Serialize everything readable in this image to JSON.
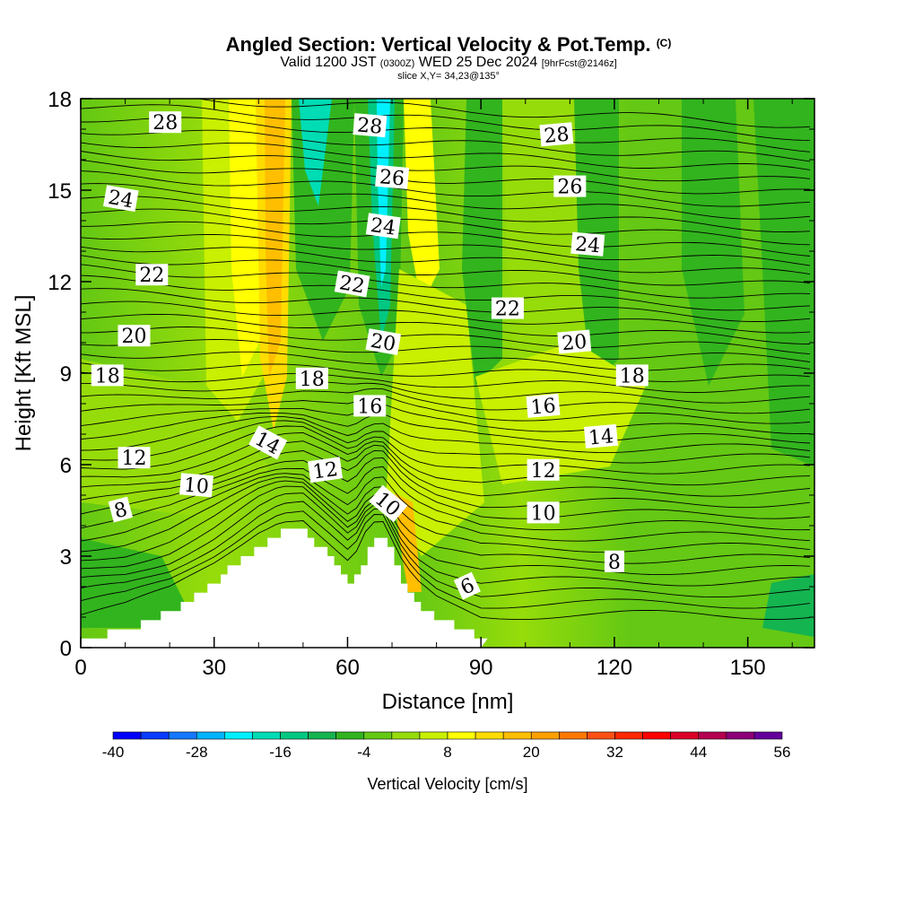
{
  "title": {
    "main": "Angled Section: Vertical Velocity & Pot.Temp.",
    "main_unit": "(C)",
    "valid_prefix": "Valid 1200 JST",
    "valid_z": "(0300Z)",
    "valid_date": "WED 25 Dec 2024",
    "forecast": "[9hrFcst@2146z]",
    "slice": "slice X,Y= 34,23@135°"
  },
  "chart_data": {
    "type": "heatmap",
    "xlabel": "Distance [nm]",
    "ylabel": "Height [Kft MSL]",
    "xlim": [
      0,
      165
    ],
    "ylim": [
      0,
      18
    ],
    "x_ticks": [
      0,
      30,
      60,
      90,
      120,
      150
    ],
    "y_ticks": [
      0,
      3,
      6,
      9,
      12,
      15,
      18
    ],
    "colorbar": {
      "title": "Vertical Velocity [cm/s]",
      "tick_labels": [
        -40,
        -28,
        -16,
        -4,
        8,
        20,
        32,
        44,
        56
      ],
      "colors": [
        "#0000ff",
        "#0a3cff",
        "#1478ff",
        "#00b4ff",
        "#00f0ff",
        "#00dcb4",
        "#00c882",
        "#14b450",
        "#32b41e",
        "#64c814",
        "#96dc0a",
        "#c8f000",
        "#ffff00",
        "#ffdc00",
        "#ffbe00",
        "#ffa000",
        "#ff7800",
        "#ff5014",
        "#ff2800",
        "#ff0000",
        "#dc0028",
        "#b40050",
        "#8c0078",
        "#64009b"
      ]
    },
    "terrain_kft": {
      "x": [
        0,
        10,
        20,
        30,
        40,
        45,
        50,
        55,
        60,
        62,
        65,
        68,
        72,
        75,
        80,
        85,
        90
      ],
      "z": [
        0.3,
        0.6,
        1.2,
        2.2,
        3.4,
        3.8,
        3.8,
        3.0,
        2.2,
        2.5,
        3.5,
        3.5,
        2.2,
        1.5,
        0.9,
        0.6,
        0.3
      ]
    },
    "theta_isolines": [
      {
        "value": "6",
        "x": 87,
        "y": 2.0,
        "angle": -25
      },
      {
        "value": "8",
        "x": 9,
        "y": 4.5,
        "angle": -15
      },
      {
        "value": "8",
        "x": 120,
        "y": 2.8,
        "angle": 0
      },
      {
        "value": "10",
        "x": 26,
        "y": 5.3,
        "angle": 5
      },
      {
        "value": "10",
        "x": 69,
        "y": 4.7,
        "angle": 40
      },
      {
        "value": "10",
        "x": 104,
        "y": 4.4,
        "angle": 0
      },
      {
        "value": "12",
        "x": 12,
        "y": 6.2,
        "angle": 0
      },
      {
        "value": "12",
        "x": 55,
        "y": 5.8,
        "angle": -8
      },
      {
        "value": "12",
        "x": 104,
        "y": 5.8,
        "angle": 0
      },
      {
        "value": "14",
        "x": 42,
        "y": 6.7,
        "angle": 28
      },
      {
        "value": "14",
        "x": 117,
        "y": 6.9,
        "angle": -5
      },
      {
        "value": "16",
        "x": 65,
        "y": 7.9,
        "angle": 0
      },
      {
        "value": "16",
        "x": 104,
        "y": 7.9,
        "angle": -5
      },
      {
        "value": "18",
        "x": 6,
        "y": 8.9,
        "angle": 0
      },
      {
        "value": "18",
        "x": 52,
        "y": 8.8,
        "angle": 0
      },
      {
        "value": "18",
        "x": 124,
        "y": 8.9,
        "angle": 0
      },
      {
        "value": "20",
        "x": 12,
        "y": 10.2,
        "angle": 0
      },
      {
        "value": "20",
        "x": 68,
        "y": 10.0,
        "angle": 10
      },
      {
        "value": "20",
        "x": 111,
        "y": 10.0,
        "angle": -5
      },
      {
        "value": "22",
        "x": 16,
        "y": 12.2,
        "angle": 0
      },
      {
        "value": "22",
        "x": 61,
        "y": 11.9,
        "angle": 10
      },
      {
        "value": "22",
        "x": 96,
        "y": 11.1,
        "angle": 0
      },
      {
        "value": "24",
        "x": 9,
        "y": 14.7,
        "angle": 10
      },
      {
        "value": "24",
        "x": 68,
        "y": 13.8,
        "angle": 8
      },
      {
        "value": "24",
        "x": 114,
        "y": 13.2,
        "angle": 5
      },
      {
        "value": "26",
        "x": 70,
        "y": 15.4,
        "angle": 5
      },
      {
        "value": "26",
        "x": 110,
        "y": 15.1,
        "angle": 0
      },
      {
        "value": "28",
        "x": 19,
        "y": 17.2,
        "angle": 0
      },
      {
        "value": "28",
        "x": 65,
        "y": 17.1,
        "angle": 5
      },
      {
        "value": "28",
        "x": 107,
        "y": 16.8,
        "angle": -5
      }
    ]
  }
}
